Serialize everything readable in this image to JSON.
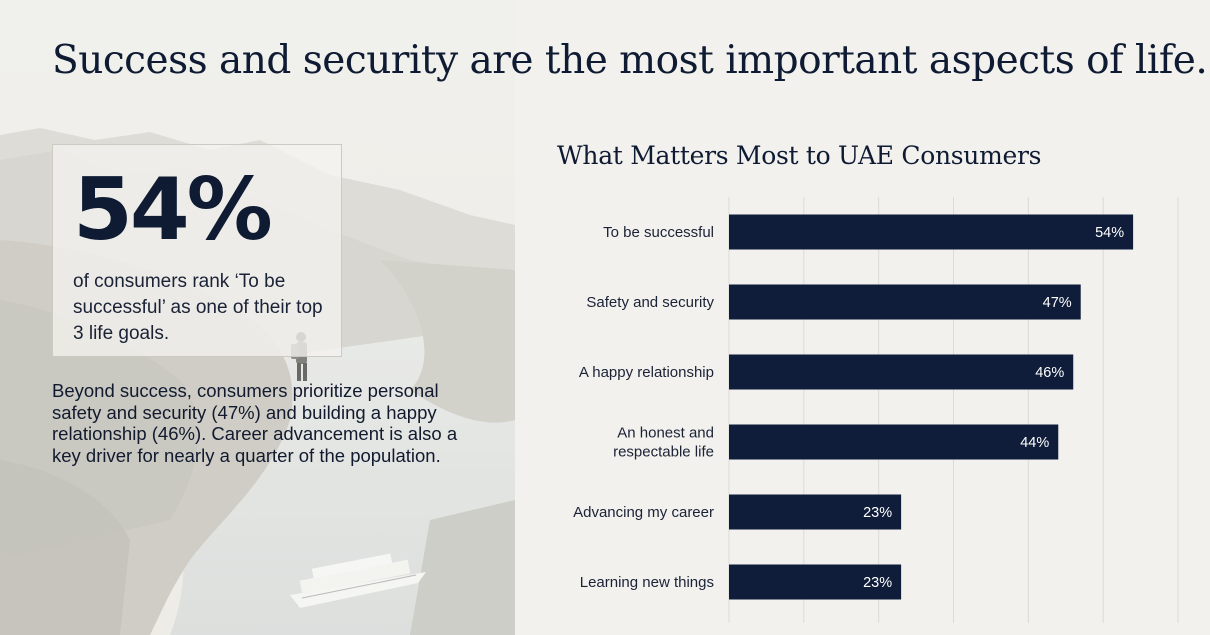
{
  "headline": "Success and security are the most important aspects of life.",
  "stat": {
    "value": "54%",
    "caption": "of consumers rank ‘To be successful’ as one of their top 3 life goals."
  },
  "summary": "Beyond success, consumers prioritize personal safety and security (47%) and building a happy relationship (46%). Career advancement is also a key driver for nearly a quarter of the population.",
  "colors": {
    "bar": "#0f1d3a",
    "gridline": "#dcdbd6",
    "text_dark": "#0f1b33"
  },
  "chart_data": {
    "type": "bar",
    "orientation": "horizontal",
    "title": "What Matters Most to UAE Consumers",
    "categories": [
      [
        "To be successful"
      ],
      [
        "Safety and security"
      ],
      [
        "A happy relationship"
      ],
      [
        "An honest and",
        "respectable life"
      ],
      [
        "Advancing my career"
      ],
      [
        "Learning new things"
      ]
    ],
    "values": [
      54,
      47,
      46,
      44,
      23,
      23
    ],
    "value_labels": [
      "54%",
      "47%",
      "46%",
      "44%",
      "23%",
      "23%"
    ],
    "xlim": [
      0,
      60
    ],
    "grid": true,
    "legend": "none"
  }
}
